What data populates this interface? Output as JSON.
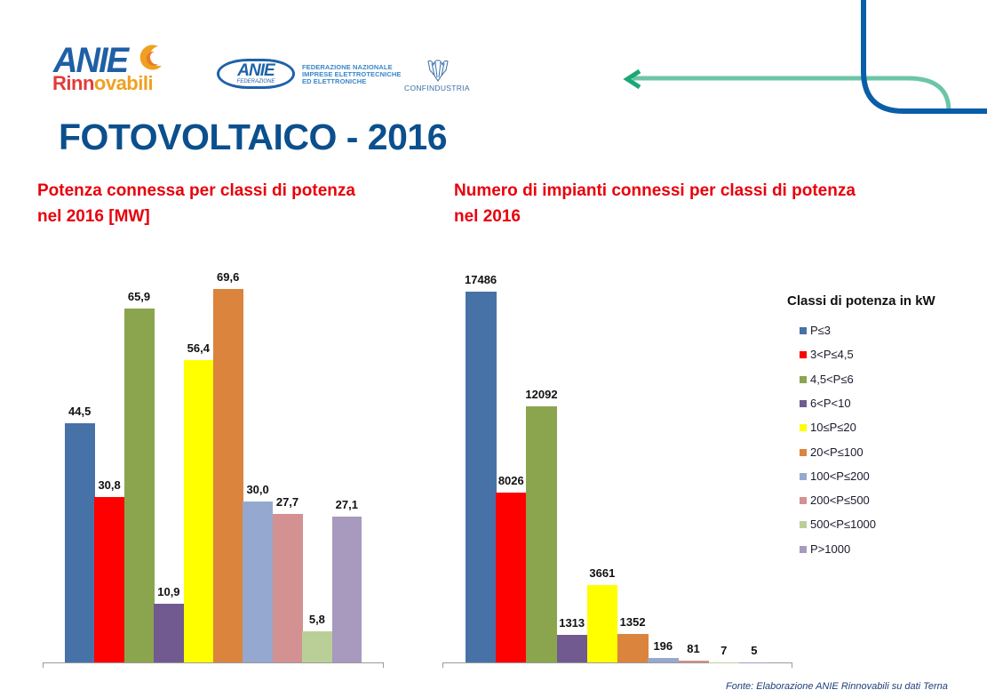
{
  "header": {
    "logo_anie_rinnovabili": {
      "line1": "ANIE",
      "line2_part1": "Rinn",
      "line2_part2": "ovabili"
    },
    "logo_anie_federazione": {
      "mark": "ANIE",
      "sub": "FEDERAZIONE",
      "text_lines": [
        "FEDERAZIONE NAZIONALE",
        "IMPRESE ELETTROTECNICHE",
        "ED ELETTRONICHE"
      ]
    },
    "logo_confindustria": {
      "text": "CONFINDUSTRIA"
    },
    "colors": {
      "title": "#0b4f8d",
      "chart_title": "#e8000b",
      "deco_blue": "#0a5ea8",
      "deco_green": "#6cc5a7",
      "arrow_green": "#1aa875"
    }
  },
  "page_title": "FOTOVOLTAICO - 2016",
  "legend": {
    "title": "Classi di potenza in kW",
    "items": [
      {
        "label": "P≤3",
        "color": "#4672a8"
      },
      {
        "label": "3<P≤4,5",
        "color": "#ff0000"
      },
      {
        "label": "4,5<P≤6",
        "color": "#8ba54e"
      },
      {
        "label": "6<P<10",
        "color": "#715a8f"
      },
      {
        "label": "10≤P≤20",
        "color": "#ffff00"
      },
      {
        "label": "20<P≤100",
        "color": "#db843d"
      },
      {
        "label": "100<P≤200",
        "color": "#95a9d0"
      },
      {
        "label": "200<P≤500",
        "color": "#d39191"
      },
      {
        "label": "500<P≤1000",
        "color": "#bacf97"
      },
      {
        "label": "P>1000",
        "color": "#a899bf"
      }
    ]
  },
  "chart_data": [
    {
      "type": "bar",
      "title_lines": [
        "Potenza connessa per classi di potenza",
        "nel 2016 [MW]"
      ],
      "categories": [
        "P≤3",
        "3<P≤4,5",
        "4,5<P≤6",
        "6<P<10",
        "10≤P≤20",
        "20<P≤100",
        "100<P≤200",
        "200<P≤500",
        "500<P≤1000",
        "P>1000"
      ],
      "values": [
        44.5,
        30.8,
        65.9,
        10.9,
        56.4,
        69.6,
        30.0,
        27.7,
        5.8,
        27.1
      ],
      "data_labels": [
        "44,5",
        "30,8",
        "65,9",
        "10,9",
        "56,4",
        "69,6",
        "30,0",
        "27,7",
        "5,8",
        "27,1"
      ],
      "xlabel": "",
      "ylabel": "",
      "ylim": [
        0,
        69.6
      ],
      "grid": false,
      "legend": "right"
    },
    {
      "type": "bar",
      "title_lines": [
        "Numero di impianti connessi per classi di potenza",
        "nel 2016"
      ],
      "categories": [
        "P≤3",
        "3<P≤4,5",
        "4,5<P≤6",
        "6<P<10",
        "10≤P≤20",
        "20<P≤100",
        "100<P≤200",
        "200<P≤500",
        "500<P≤1000",
        "P>1000"
      ],
      "values": [
        17486,
        8026,
        12092,
        1313,
        3661,
        1352,
        196,
        81,
        7,
        5
      ],
      "data_labels": [
        "17486",
        "8026",
        "12092",
        "1313",
        "3661",
        "1352",
        "196",
        "81",
        "7",
        "5"
      ],
      "xlabel": "",
      "ylabel": "",
      "ylim": [
        0,
        17486
      ],
      "grid": false,
      "legend": "right"
    }
  ],
  "source": "Fonte: Elaborazione ANIE Rinnovabili su dati Terna"
}
